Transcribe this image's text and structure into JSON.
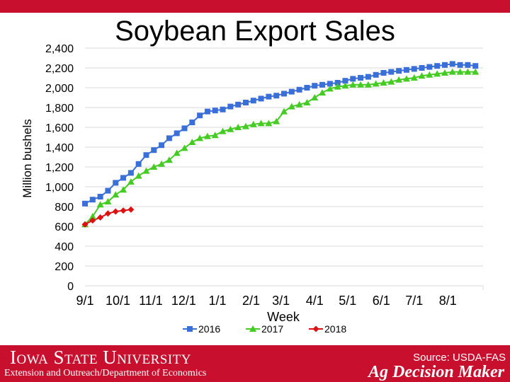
{
  "header": {
    "title": "Soybean Export Sales"
  },
  "chart_data": {
    "type": "line",
    "title": "Soybean Export Sales",
    "xlabel": "Week",
    "ylabel": "Million bushels",
    "ylim": [
      0,
      2400
    ],
    "yticks": [
      0,
      200,
      400,
      600,
      800,
      1000,
      1200,
      1400,
      1600,
      1800,
      2000,
      2200,
      2400
    ],
    "ytick_labels": [
      "0",
      "200",
      "400",
      "600",
      "800",
      "1,000",
      "1,200",
      "1,400",
      "1,600",
      "1,800",
      "2,000",
      "2,200",
      "2,400"
    ],
    "x_unit": "week index from 9/1",
    "xlim": [
      0,
      52
    ],
    "xticks": [
      0,
      4.3,
      8.6,
      12.9,
      17.3,
      21.7,
      25.6,
      30,
      34.3,
      38.7,
      43,
      47.4
    ],
    "xtick_labels": [
      "9/1",
      "10/1",
      "11/1",
      "12/1",
      "1/1",
      "2/1",
      "3/1",
      "4/1",
      "5/1",
      "6/1",
      "7/1",
      "8/1"
    ],
    "legend_position": "bottom",
    "grid": true,
    "series": [
      {
        "name": "2016",
        "color": "#3a6fd8",
        "marker": "square",
        "values": [
          830,
          870,
          900,
          960,
          1040,
          1090,
          1140,
          1230,
          1320,
          1370,
          1420,
          1490,
          1540,
          1590,
          1650,
          1720,
          1760,
          1770,
          1780,
          1810,
          1830,
          1850,
          1870,
          1890,
          1910,
          1920,
          1940,
          1960,
          1980,
          2000,
          2020,
          2030,
          2040,
          2050,
          2070,
          2090,
          2100,
          2110,
          2130,
          2150,
          2160,
          2170,
          2180,
          2190,
          2200,
          2210,
          2220,
          2230,
          2240,
          2230,
          2230,
          2220
        ]
      },
      {
        "name": "2017",
        "color": "#44cc22",
        "marker": "triangle",
        "values": [
          620,
          700,
          820,
          850,
          920,
          970,
          1050,
          1110,
          1160,
          1200,
          1230,
          1270,
          1340,
          1390,
          1450,
          1490,
          1510,
          1520,
          1560,
          1580,
          1600,
          1610,
          1630,
          1640,
          1640,
          1660,
          1760,
          1810,
          1830,
          1850,
          1900,
          1950,
          1990,
          2010,
          2020,
          2030,
          2030,
          2030,
          2040,
          2050,
          2060,
          2080,
          2090,
          2100,
          2120,
          2130,
          2140,
          2150,
          2160,
          2160,
          2160,
          2160
        ]
      },
      {
        "name": "2018",
        "color": "#dd1111",
        "marker": "diamond",
        "values": [
          620,
          660,
          690,
          730,
          750,
          760,
          770
        ]
      }
    ]
  },
  "footer": {
    "university": "Iowa State University",
    "department": "Extension and Outreach/Department of Economics",
    "source": "Source: USDA-FAS",
    "brand": "Ag Decision Maker"
  }
}
